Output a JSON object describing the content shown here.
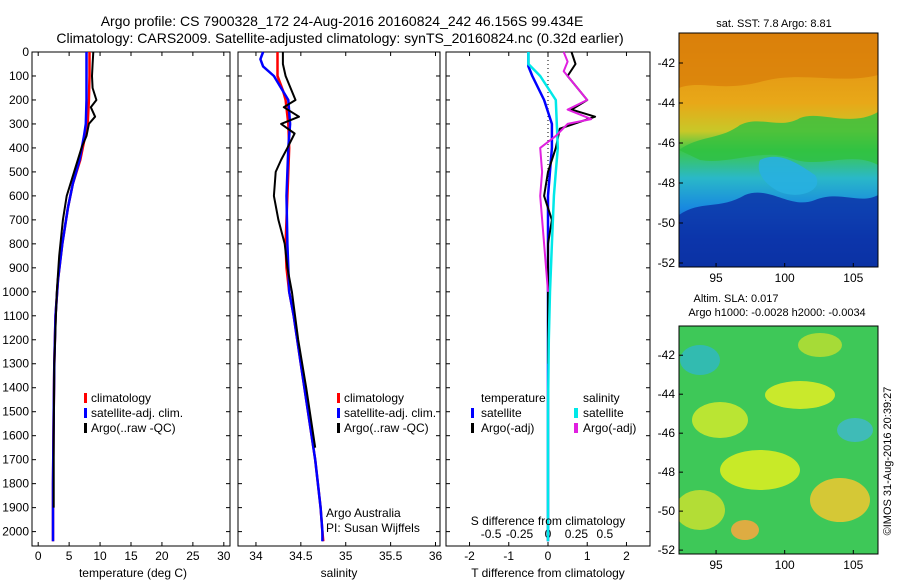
{
  "header": {
    "line1": "Argo profile: CS 7900328_172 24-Aug-2016 20160824_242 46.156S 99.434E",
    "line2": "Climatology: CARS2009. Satellite-adjusted climatology: synTS_20160824.nc (0.32d earlier)"
  },
  "depth_axis": {
    "ticks": [
      0,
      100,
      200,
      300,
      400,
      500,
      600,
      700,
      800,
      900,
      1000,
      1100,
      1200,
      1300,
      1400,
      1500,
      1600,
      1700,
      1800,
      1900,
      2000
    ],
    "range": [
      0,
      2060
    ]
  },
  "temperature_panel": {
    "xlabel": "temperature (deg C)",
    "xticks": [
      0,
      5,
      10,
      15,
      20,
      25,
      30
    ],
    "xlim": [
      -1,
      31
    ],
    "legend": [
      "climatology",
      "satellite-adj. clim.",
      "Argo(..raw -QC)"
    ]
  },
  "salinity_panel": {
    "xlabel": "salinity",
    "xticks": [
      34,
      34.5,
      35,
      35.5,
      36
    ],
    "xlim": [
      33.8,
      36.05
    ],
    "legend": [
      "climatology",
      "satellite-adj. clim.",
      "Argo(..raw -QC)"
    ],
    "note1": "Argo Australia",
    "note2": "PI: Susan Wijffels"
  },
  "difference_panel": {
    "xlabel": "T difference from climatology",
    "top_label": "S difference from climatology",
    "t_xticks": [
      -2,
      -1,
      0,
      1,
      2
    ],
    "t_xlim": [
      -2.6,
      2.6
    ],
    "s_xticks": [
      "-0.5",
      "-0.25",
      "0",
      "0.25",
      "0.5"
    ],
    "legend_head_t": "temperature",
    "legend_head_s": "salinity",
    "legend_t": [
      "satellite",
      "Argo(-adj)"
    ],
    "legend_s": [
      "satellite",
      "Argo(-adj)"
    ]
  },
  "sst_map": {
    "title": "sat. SST: 7.8 Argo: 8.81",
    "yticks": [
      -42,
      -44,
      -46,
      -48,
      -50,
      -52
    ],
    "xticks": [
      95,
      100,
      105
    ],
    "lat_range": [
      -40.5,
      -52.2
    ],
    "lon_range": [
      92.3,
      106.8
    ]
  },
  "sla_map": {
    "title1": "Altim. SLA: 0.017",
    "title2": "Argo h1000: -0.0028 h2000: -0.0034",
    "yticks": [
      -42,
      -44,
      -46,
      -48,
      -50,
      -52
    ],
    "xticks": [
      95,
      100,
      105
    ],
    "lat_range": [
      -40.5,
      -52.2
    ],
    "lon_range": [
      92.3,
      106.8
    ]
  },
  "side_text": "©IMOS 31-Aug-2016 20:39:27",
  "colors": {
    "climatology": "#ff0000",
    "satellite": "#0000ff",
    "argo": "#000000",
    "sat_salinity": "#00e8e8",
    "argo_salinity": "#e020e0"
  },
  "chart_data": [
    {
      "type": "line",
      "panel": "temperature",
      "xlabel": "temperature (deg C)",
      "ylabel": "",
      "xlim": [
        -1,
        31
      ],
      "ylim": [
        2060,
        0
      ],
      "series": [
        {
          "name": "climatology",
          "x": [
            8.3,
            8.3,
            8.2,
            8.0,
            7.6,
            6.8,
            5.6,
            4.8,
            3.9,
            3.2,
            2.8,
            2.6,
            2.5,
            2.4,
            2.4
          ],
          "y": [
            0,
            100,
            200,
            300,
            350,
            450,
            550,
            650,
            800,
            950,
            1100,
            1300,
            1500,
            1800,
            2040
          ]
        },
        {
          "name": "satellite-adj. clim.",
          "x": [
            7.8,
            7.8,
            7.8,
            7.7,
            7.4,
            6.7,
            5.6,
            4.8,
            3.9,
            3.2,
            2.8,
            2.6,
            2.5,
            2.4,
            2.4
          ],
          "y": [
            0,
            100,
            200,
            300,
            350,
            450,
            550,
            650,
            800,
            950,
            1100,
            1300,
            1500,
            1800,
            2040
          ]
        },
        {
          "name": "Argo(..raw -QC)",
          "x": [
            8.9,
            8.8,
            8.7,
            8.8,
            9.4,
            8.5,
            9.2,
            8.2,
            7.8,
            7.0,
            5.8,
            4.6,
            4.0,
            3.4,
            3.0,
            2.8,
            2.6,
            2.5,
            2.5
          ],
          "y": [
            0,
            50,
            100,
            150,
            200,
            230,
            270,
            300,
            350,
            400,
            500,
            600,
            700,
            850,
            1000,
            1150,
            1300,
            1600,
            1900
          ]
        }
      ]
    },
    {
      "type": "line",
      "panel": "salinity",
      "xlabel": "salinity",
      "ylabel": "",
      "xlim": [
        33.8,
        36.05
      ],
      "ylim": [
        2060,
        0
      ],
      "series": [
        {
          "name": "climatology",
          "x": [
            34.24,
            34.24,
            34.3,
            34.33,
            34.36,
            34.37,
            34.35,
            34.33,
            34.34,
            34.37,
            34.42,
            34.5,
            34.58,
            34.66,
            34.72,
            34.74,
            34.75
          ],
          "y": [
            0,
            100,
            160,
            200,
            300,
            400,
            600,
            800,
            900,
            1000,
            1100,
            1300,
            1500,
            1700,
            1900,
            2000,
            2040
          ]
        },
        {
          "name": "satellite-adj. clim.",
          "x": [
            34.08,
            34.05,
            34.08,
            34.2,
            34.36,
            34.38,
            34.36,
            34.34,
            34.35,
            34.37,
            34.42,
            34.5,
            34.58,
            34.66,
            34.72,
            34.74,
            34.74
          ],
          "y": [
            0,
            30,
            60,
            100,
            200,
            300,
            400,
            600,
            800,
            1000,
            1100,
            1300,
            1500,
            1700,
            1900,
            2000,
            2040
          ]
        },
        {
          "name": "Argo(..raw -QC)",
          "x": [
            34.3,
            34.3,
            34.33,
            34.44,
            34.31,
            34.48,
            34.28,
            34.43,
            34.35,
            34.28,
            34.22,
            34.2,
            34.25,
            34.32,
            34.35,
            34.4,
            34.47,
            34.56,
            34.66
          ],
          "y": [
            0,
            50,
            100,
            200,
            230,
            270,
            300,
            340,
            400,
            450,
            500,
            600,
            700,
            800,
            900,
            1000,
            1200,
            1400,
            1650
          ]
        }
      ]
    },
    {
      "type": "line",
      "panel": "difference",
      "xlabel": "T difference from climatology",
      "ylabel": "",
      "xlim": [
        -2.6,
        2.6
      ],
      "ylim": [
        2060,
        0
      ],
      "series": [
        {
          "name": "satellite",
          "x": [
            -0.5,
            -0.5,
            -0.4,
            -0.1,
            0.1,
            0.1,
            0,
            0,
            0
          ],
          "y": [
            0,
            60,
            100,
            200,
            300,
            400,
            600,
            800,
            2040
          ]
        },
        {
          "name": "Argo(-adj)",
          "x": [
            0.6,
            0.7,
            0.5,
            1.0,
            0.6,
            1.2,
            0.3,
            0.2,
            0,
            -0.1,
            0.1,
            0,
            0
          ],
          "y": [
            0,
            50,
            100,
            200,
            240,
            270,
            320,
            400,
            500,
            600,
            700,
            800,
            1300
          ]
        },
        {
          "name": "satellite (salinity)",
          "x": [
            -0.5,
            -0.5,
            -0.2,
            0.2,
            0.25,
            0.2,
            0.15,
            0.1,
            0.05,
            0.02,
            0,
            0
          ],
          "y": [
            0,
            50,
            100,
            200,
            400,
            500,
            600,
            800,
            1000,
            1200,
            1500,
            2040
          ]
        },
        {
          "name": "Argo(-adj) (salinity)",
          "x": [
            0.4,
            0.5,
            0.4,
            1.0,
            0.5,
            1.1,
            0.5,
            0.2,
            -0.2,
            -0.15,
            -0.2,
            -0.1,
            0
          ],
          "y": [
            0,
            40,
            80,
            200,
            240,
            280,
            300,
            350,
            400,
            500,
            600,
            800,
            1000
          ]
        }
      ]
    }
  ]
}
